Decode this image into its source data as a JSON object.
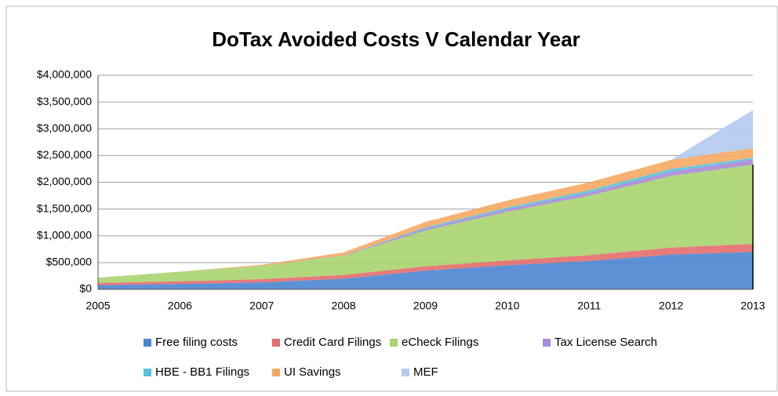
{
  "chart_data": {
    "type": "stacked_area",
    "title": "DoTax Avoided Costs V Calendar Year",
    "categories": [
      "2005",
      "2006",
      "2007",
      "2008",
      "2009",
      "2010",
      "2011",
      "2012",
      "2013"
    ],
    "series": [
      {
        "name": "Free filing costs",
        "color": "#4a86d0",
        "values": [
          80000,
          100000,
          130000,
          200000,
          350000,
          450000,
          530000,
          650000,
          700000
        ]
      },
      {
        "name": "Credit Card Filings",
        "color": "#e46c6c",
        "values": [
          40000,
          50000,
          60000,
          70000,
          80000,
          90000,
          110000,
          130000,
          150000
        ]
      },
      {
        "name": "eCheck Filings",
        "color": "#a9d46e",
        "values": [
          100000,
          180000,
          250000,
          360000,
          670000,
          910000,
          1110000,
          1340000,
          1480000
        ]
      },
      {
        "name": "Tax License Search",
        "color": "#a98bd6",
        "values": [
          0,
          0,
          0,
          10000,
          40000,
          50000,
          60000,
          80000,
          100000
        ]
      },
      {
        "name": "HBE - BB1 Filings",
        "color": "#52c3df",
        "values": [
          0,
          0,
          0,
          0,
          20000,
          30000,
          40000,
          50000,
          30000
        ]
      },
      {
        "name": "UI Savings",
        "color": "#f6a862",
        "values": [
          0,
          0,
          20000,
          50000,
          100000,
          130000,
          150000,
          170000,
          180000
        ]
      },
      {
        "name": "MEF",
        "color": "#b3caee",
        "values": [
          0,
          0,
          0,
          0,
          0,
          0,
          0,
          0,
          710000
        ]
      }
    ],
    "ylim": [
      0,
      4000000
    ],
    "yticks": [
      {
        "value": 0,
        "label": "$0"
      },
      {
        "value": 500000,
        "label": "$500,000"
      },
      {
        "value": 1000000,
        "label": "$1,000,000"
      },
      {
        "value": 1500000,
        "label": "$1,500,000"
      },
      {
        "value": 2000000,
        "label": "$2,000,000"
      },
      {
        "value": 2500000,
        "label": "$2,500,000"
      },
      {
        "value": 3000000,
        "label": "$3,000,000"
      },
      {
        "value": 3500000,
        "label": "$3,500,000"
      },
      {
        "value": 4000000,
        "label": "$4,000,000"
      }
    ],
    "grid": true
  }
}
